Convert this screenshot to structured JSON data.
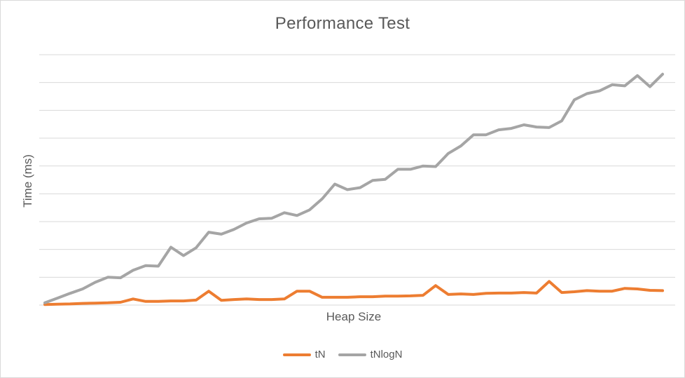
{
  "chart_data": {
    "type": "line",
    "title": "Performance Test",
    "xlabel": "Heap Size",
    "ylabel": "Time (ms)",
    "ylim": [
      0,
      9
    ],
    "grid": true,
    "y_gridlines": [
      0,
      1,
      2,
      3,
      4,
      5,
      6,
      7,
      8,
      9
    ],
    "tick_labels_shown": false,
    "legend_position": "bottom",
    "series": [
      {
        "name": "tN",
        "color": "#ED7D31",
        "values": [
          0.02,
          0.03,
          0.04,
          0.06,
          0.07,
          0.08,
          0.1,
          0.22,
          0.13,
          0.13,
          0.15,
          0.15,
          0.18,
          0.5,
          0.17,
          0.2,
          0.22,
          0.2,
          0.2,
          0.22,
          0.5,
          0.5,
          0.28,
          0.28,
          0.28,
          0.3,
          0.3,
          0.32,
          0.32,
          0.33,
          0.35,
          0.7,
          0.38,
          0.4,
          0.38,
          0.42,
          0.43,
          0.43,
          0.45,
          0.43,
          0.85,
          0.45,
          0.48,
          0.52,
          0.5,
          0.5,
          0.6,
          0.58,
          0.53,
          0.52
        ]
      },
      {
        "name": "tNlogN",
        "color": "#A5A5A5",
        "values": [
          0.08,
          0.25,
          0.42,
          0.58,
          0.82,
          1.0,
          0.98,
          1.25,
          1.42,
          1.4,
          2.08,
          1.78,
          2.06,
          2.62,
          2.55,
          2.72,
          2.95,
          3.1,
          3.12,
          3.32,
          3.22,
          3.42,
          3.82,
          4.35,
          4.15,
          4.22,
          4.48,
          4.52,
          4.88,
          4.88,
          5.0,
          4.98,
          5.45,
          5.72,
          6.12,
          6.12,
          6.3,
          6.35,
          6.48,
          6.4,
          6.38,
          6.62,
          7.38,
          7.6,
          7.7,
          7.92,
          7.88,
          8.25,
          7.85,
          8.3
        ]
      }
    ]
  },
  "colors": {
    "gridline": "#D9D9D9",
    "text": "#595959",
    "border": "#D9D9D9"
  }
}
